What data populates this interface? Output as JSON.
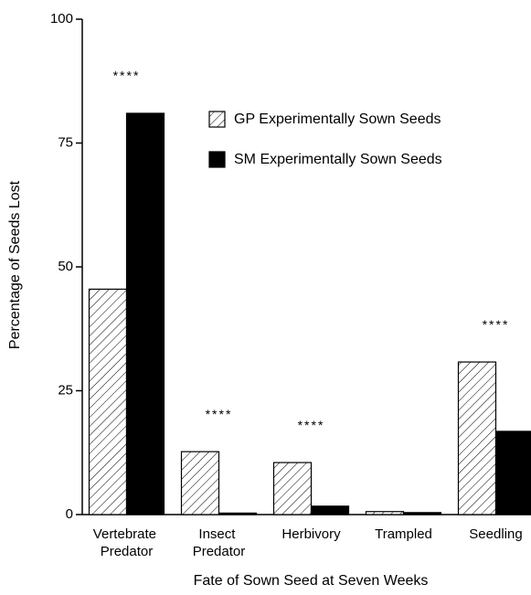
{
  "chart_data": {
    "type": "bar",
    "xlabel": "Fate of Sown Seed at Seven Weeks",
    "ylabel": "Percentage of Seeds Lost",
    "categories": [
      "Vertebrate Predator",
      "Insect Predator",
      "Herbivory",
      "Trampled",
      "Seedling"
    ],
    "series": [
      {
        "name": "GP Experimentally Sown Seeds",
        "color": "#ffffff",
        "hatch": true,
        "values": [
          45.5,
          12.7,
          10.5,
          0.6,
          30.8
        ]
      },
      {
        "name": "SM Experimentally Sown Seeds",
        "color": "#000000",
        "hatch": false,
        "values": [
          81,
          0.3,
          1.7,
          0.4,
          16.8
        ]
      }
    ],
    "significance": [
      "****",
      "****",
      "****",
      null,
      "****"
    ],
    "ylim": [
      0,
      100
    ],
    "yticks": [
      0,
      25,
      50,
      75,
      100
    ],
    "grid": false
  }
}
